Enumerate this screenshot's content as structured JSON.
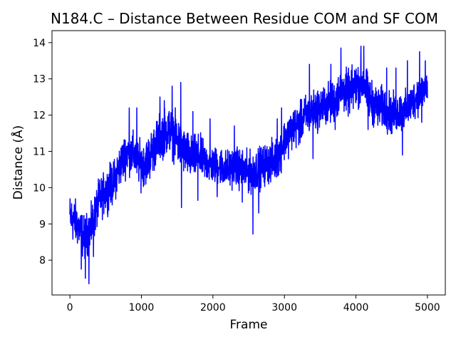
{
  "chart_data": {
    "type": "line",
    "title": "N184.C – Distance Between Residue COM and SF COM",
    "xlabel": "Frame",
    "ylabel": "Distance (Å)",
    "xlim": [
      -250,
      5250
    ],
    "ylim": [
      7.04,
      14.33
    ],
    "grid": false,
    "legend": "none",
    "x_ticks": [
      0,
      1000,
      2000,
      3000,
      4000,
      5000
    ],
    "y_ticks": [
      8,
      9,
      10,
      11,
      12,
      13,
      14
    ],
    "series": [
      {
        "color": "#0000ff",
        "trend": {
          "x": [
            0,
            100,
            200,
            300,
            400,
            500,
            600,
            700,
            800,
            900,
            1000,
            1100,
            1200,
            1300,
            1400,
            1500,
            1600,
            1700,
            1800,
            1900,
            2000,
            2100,
            2200,
            2300,
            2400,
            2500,
            2600,
            2700,
            2800,
            2900,
            3000,
            3100,
            3200,
            3300,
            3400,
            3500,
            3600,
            3700,
            3800,
            3900,
            4000,
            4100,
            4200,
            4300,
            4400,
            4500,
            4600,
            4700,
            4800,
            4900,
            5000
          ],
          "y": [
            9.2,
            9.0,
            8.6,
            8.9,
            9.6,
            9.9,
            10.1,
            10.6,
            11.0,
            10.9,
            10.6,
            10.8,
            11.2,
            11.5,
            11.6,
            11.3,
            11.0,
            10.8,
            10.9,
            10.7,
            10.6,
            10.6,
            10.5,
            10.6,
            10.5,
            10.4,
            10.5,
            10.6,
            10.7,
            10.8,
            11.3,
            11.6,
            11.7,
            12.0,
            12.1,
            12.2,
            12.3,
            12.4,
            12.7,
            12.6,
            12.8,
            12.9,
            12.4,
            12.2,
            12.2,
            12.0,
            12.1,
            12.1,
            12.4,
            12.6,
            12.8
          ]
        },
        "spread": {
          "x": [
            0,
            500,
            1000,
            1500,
            2000,
            2500,
            3000,
            3500,
            4000,
            4500,
            5000
          ],
          "y": [
            0.55,
            0.5,
            0.55,
            0.6,
            0.45,
            0.5,
            0.5,
            0.5,
            0.55,
            0.5,
            0.45
          ]
        },
        "spikes": [
          {
            "x": 160,
            "y": 7.75
          },
          {
            "x": 215,
            "y": 7.5
          },
          {
            "x": 265,
            "y": 7.35
          },
          {
            "x": 330,
            "y": 8.1
          },
          {
            "x": 560,
            "y": 10.7
          },
          {
            "x": 830,
            "y": 12.2
          },
          {
            "x": 935,
            "y": 12.2
          },
          {
            "x": 1260,
            "y": 12.5
          },
          {
            "x": 1320,
            "y": 12.4
          },
          {
            "x": 1430,
            "y": 12.8
          },
          {
            "x": 1550,
            "y": 12.9
          },
          {
            "x": 1560,
            "y": 9.45
          },
          {
            "x": 1720,
            "y": 12.1
          },
          {
            "x": 1790,
            "y": 9.65
          },
          {
            "x": 1960,
            "y": 11.9
          },
          {
            "x": 2060,
            "y": 9.75
          },
          {
            "x": 2300,
            "y": 11.7
          },
          {
            "x": 2410,
            "y": 9.6
          },
          {
            "x": 2560,
            "y": 8.72
          },
          {
            "x": 2640,
            "y": 9.3
          },
          {
            "x": 2900,
            "y": 11.9
          },
          {
            "x": 2960,
            "y": 12.2
          },
          {
            "x": 3350,
            "y": 13.4
          },
          {
            "x": 3400,
            "y": 10.8
          },
          {
            "x": 3650,
            "y": 13.4
          },
          {
            "x": 3710,
            "y": 11.6
          },
          {
            "x": 3790,
            "y": 13.85
          },
          {
            "x": 4070,
            "y": 13.9
          },
          {
            "x": 4110,
            "y": 13.9
          },
          {
            "x": 4170,
            "y": 11.6
          },
          {
            "x": 4430,
            "y": 13.3
          },
          {
            "x": 4560,
            "y": 13.3
          },
          {
            "x": 4650,
            "y": 10.9
          },
          {
            "x": 4720,
            "y": 13.5
          },
          {
            "x": 4890,
            "y": 13.75
          },
          {
            "x": 4920,
            "y": 11.8
          },
          {
            "x": 4970,
            "y": 13.5
          }
        ],
        "n_frames": 5000
      }
    ]
  }
}
